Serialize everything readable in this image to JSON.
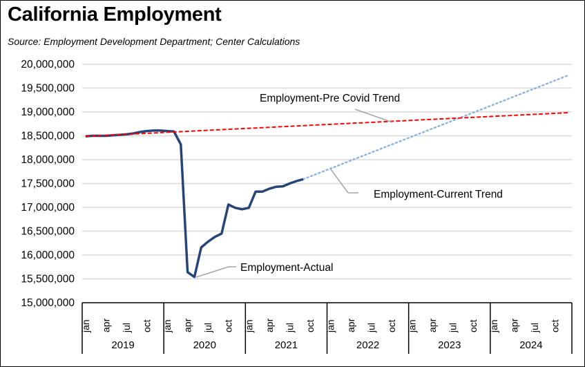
{
  "chart_data": {
    "type": "line",
    "title": "California Employment",
    "subtitle": "Source:  Employment Development Department; Center Calculations",
    "xlabel": "",
    "ylabel": "",
    "ylim": [
      15000000,
      20000000
    ],
    "y_ticks": [
      15000000,
      15500000,
      16000000,
      16500000,
      17000000,
      17500000,
      18000000,
      18500000,
      19000000,
      19500000,
      20000000
    ],
    "y_tick_labels": [
      "15,000,000",
      "15,500,000",
      "16,000,000",
      "16,500,000",
      "17,000,000",
      "17,500,000",
      "18,000,000",
      "18,500,000",
      "19,000,000",
      "19,500,000",
      "20,000,000"
    ],
    "grid": true,
    "years": [
      "2019",
      "2020",
      "2021",
      "2022",
      "2023",
      "2024"
    ],
    "month_tick_labels": [
      "jan",
      "apr",
      "jul",
      "oct"
    ],
    "x_start": "2019-01",
    "series": [
      {
        "name": "Employment-Actual",
        "color": "#264478",
        "style": "solid",
        "start_month_index": 0,
        "values": [
          18490000,
          18500000,
          18500000,
          18500000,
          18510000,
          18520000,
          18530000,
          18550000,
          18580000,
          18600000,
          18610000,
          18610000,
          18600000,
          18590000,
          18320000,
          15640000,
          15540000,
          16160000,
          16280000,
          16380000,
          16450000,
          17060000,
          16990000,
          16960000,
          16990000,
          17330000,
          17330000,
          17390000,
          17430000,
          17440000,
          17500000,
          17550000,
          17590000
        ]
      },
      {
        "name": "Employment-Pre Covid Trend",
        "color": "#FF0000",
        "style": "dashed",
        "start_month_index": 0,
        "end_month_index": 71,
        "start_value": 18490000,
        "end_value": 18985000
      },
      {
        "name": "Employment-Current Trend",
        "color": "#8EB4E3",
        "style": "dotted",
        "start_month_index": 32,
        "end_month_index": 71,
        "start_value": 17590000,
        "end_value": 19770000
      }
    ],
    "annotations": [
      {
        "text": "Employment-Pre Covid Trend",
        "series": "Employment-Pre Covid Trend"
      },
      {
        "text": "Employment-Current Trend",
        "series": "Employment-Current Trend"
      },
      {
        "text": "Employment-Actual",
        "series": "Employment-Actual"
      }
    ]
  }
}
